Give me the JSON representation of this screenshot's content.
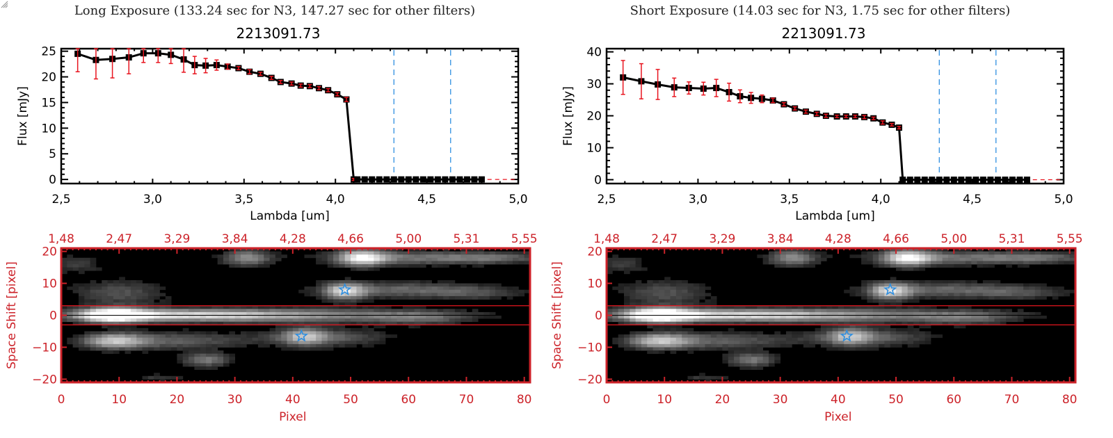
{
  "panels": [
    {
      "id": "long",
      "exposure_title": "Long Exposure (133.24 sec for N3, 147.27 sec for other filters)",
      "object_title": "2213091.73"
    },
    {
      "id": "short",
      "exposure_title": "Short Exposure (14.03 sec for N3, 1.75 sec for other filters)",
      "object_title": "2213091.73"
    }
  ],
  "colors": {
    "spectrum_line": "#000000",
    "error_bar": "#e8141e",
    "filter_line": "#2f8fe0",
    "image_axis": "#cc2229",
    "aperture_line": "#e8141e",
    "star_marker": "#2f8fe0"
  },
  "chart_data": [
    {
      "type": "line",
      "panel": "long",
      "title": "2213091.73",
      "xlabel": "Lambda [um]",
      "ylabel": "Flux [mJy]",
      "xlim": [
        2.5,
        5.0
      ],
      "ylim": [
        -0.8,
        25.5
      ],
      "xticks": [
        "2.5",
        "3.0",
        "3.5",
        "4.0",
        "4.5",
        "5.0"
      ],
      "xtick_values": [
        2.5,
        3.0,
        3.5,
        4.0,
        4.5,
        5.0
      ],
      "yticks": [
        "0",
        "5",
        "10",
        "15",
        "20",
        "25"
      ],
      "ytick_values": [
        0,
        5,
        10,
        15,
        20,
        25
      ],
      "filter_lines_x": [
        4.32,
        4.63
      ],
      "zero_line_y": 0,
      "x": [
        2.59,
        2.69,
        2.78,
        2.87,
        2.95,
        3.03,
        3.1,
        3.17,
        3.23,
        3.29,
        3.35,
        3.41,
        3.47,
        3.53,
        3.59,
        3.65,
        3.7,
        3.76,
        3.81,
        3.86,
        3.91,
        3.96,
        4.01,
        4.06,
        4.1,
        4.12,
        4.16,
        4.2,
        4.24,
        4.28,
        4.32,
        4.36,
        4.4,
        4.44,
        4.48,
        4.52,
        4.56,
        4.6,
        4.64,
        4.68,
        4.72,
        4.76,
        4.8
      ],
      "y": [
        24.5,
        23.3,
        23.5,
        23.8,
        24.6,
        24.6,
        24.3,
        23.4,
        22.3,
        22.2,
        22.3,
        22.0,
        21.7,
        21.0,
        20.6,
        19.8,
        19.0,
        18.7,
        18.3,
        18.2,
        17.8,
        17.4,
        16.6,
        15.6,
        0,
        0,
        0,
        0,
        0,
        0,
        0,
        0,
        0,
        0,
        0,
        0,
        0,
        0,
        0,
        0,
        0,
        0,
        0
      ],
      "yerr": [
        3.5,
        3.7,
        3.7,
        3.2,
        1.8,
        1.8,
        1.7,
        2.5,
        1.7,
        1.4,
        1.0,
        0.5,
        0.3,
        0.4,
        0.3,
        0.3,
        0.3,
        0.3,
        0.3,
        0.3,
        0.3,
        0.3,
        0.3,
        0.4,
        0.2,
        0,
        0,
        0,
        0,
        0,
        0,
        0,
        0,
        0,
        0,
        0,
        0,
        0,
        0,
        0,
        0,
        0,
        0
      ]
    },
    {
      "type": "line",
      "panel": "short",
      "title": "2213091.73",
      "xlabel": "Lambda [um]",
      "ylabel": "Flux [mJy]",
      "xlim": [
        2.5,
        5.0
      ],
      "ylim": [
        -1.2,
        41
      ],
      "xticks": [
        "2.5",
        "3.0",
        "3.5",
        "4.0",
        "4.5",
        "5.0"
      ],
      "xtick_values": [
        2.5,
        3.0,
        3.5,
        4.0,
        4.5,
        5.0
      ],
      "yticks": [
        "0",
        "10",
        "20",
        "30",
        "40"
      ],
      "ytick_values": [
        0,
        10,
        20,
        30,
        40
      ],
      "filter_lines_x": [
        4.32,
        4.63
      ],
      "zero_line_y": 0,
      "x": [
        2.59,
        2.69,
        2.78,
        2.87,
        2.95,
        3.03,
        3.1,
        3.17,
        3.23,
        3.29,
        3.35,
        3.41,
        3.47,
        3.53,
        3.59,
        3.65,
        3.7,
        3.76,
        3.81,
        3.86,
        3.91,
        3.96,
        4.01,
        4.06,
        4.1,
        4.12,
        4.16,
        4.2,
        4.24,
        4.28,
        4.32,
        4.36,
        4.4,
        4.44,
        4.48,
        4.52,
        4.56,
        4.6,
        4.64,
        4.68,
        4.72,
        4.76,
        4.8
      ],
      "y": [
        32.0,
        30.8,
        29.8,
        28.9,
        28.7,
        28.5,
        28.7,
        27.4,
        26.1,
        25.6,
        25.3,
        24.8,
        23.6,
        22.3,
        21.3,
        20.6,
        20.0,
        19.8,
        19.8,
        19.8,
        19.6,
        19.2,
        17.9,
        17.2,
        16.3,
        0,
        0,
        0,
        0,
        0,
        0,
        0,
        0,
        0,
        0,
        0,
        0,
        0,
        0,
        0,
        0,
        0,
        0
      ],
      "yerr": [
        5.3,
        5.5,
        4.7,
        2.9,
        1.9,
        2.0,
        2.7,
        2.8,
        2.0,
        1.7,
        1.2,
        0.7,
        0.5,
        0.5,
        0.5,
        0.5,
        0.5,
        0.4,
        0.4,
        0.4,
        0.5,
        0.4,
        0.5,
        0.4,
        0.4,
        0,
        0,
        0,
        0,
        0,
        0,
        0,
        0,
        0,
        0,
        0,
        0,
        0,
        0,
        0,
        0,
        0,
        0
      ]
    },
    {
      "type": "heatmap",
      "panel": "long",
      "xlabel": "Pixel",
      "ylabel": "Space Shift [pixel]",
      "xlim": [
        0,
        81
      ],
      "ylim": [
        -21,
        21
      ],
      "xticks": [
        "0",
        "10",
        "20",
        "30",
        "40",
        "50",
        "60",
        "70",
        "80"
      ],
      "xtick_values": [
        0,
        10,
        20,
        30,
        40,
        50,
        60,
        70,
        80
      ],
      "top_xticks": [
        "1.48",
        "2.47",
        "3.29",
        "3.84",
        "4.28",
        "4.66",
        "5.00",
        "5.31",
        "5.55"
      ],
      "top_xlabel": "Lambda [um]",
      "yticks": [
        "20",
        "10",
        "0",
        "-10",
        "-20"
      ],
      "ytick_values": [
        20,
        10,
        0,
        -10,
        -20
      ],
      "aperture_y": [
        3,
        -3
      ],
      "center_y": 0,
      "stars": [
        {
          "x": 49,
          "y": 8
        },
        {
          "x": 41.5,
          "y": -6.5
        }
      ]
    },
    {
      "type": "heatmap",
      "panel": "short",
      "xlabel": "Pixel",
      "ylabel": "Space Shift [pixel]",
      "xlim": [
        0,
        81
      ],
      "ylim": [
        -21,
        21
      ],
      "xticks": [
        "0",
        "10",
        "20",
        "30",
        "40",
        "50",
        "60",
        "70",
        "80"
      ],
      "xtick_values": [
        0,
        10,
        20,
        30,
        40,
        50,
        60,
        70,
        80
      ],
      "top_xticks": [
        "1.48",
        "2.47",
        "3.29",
        "3.84",
        "4.28",
        "4.66",
        "5.00",
        "5.31",
        "5.55"
      ],
      "top_xlabel": "Lambda [um]",
      "yticks": [
        "20",
        "10",
        "0",
        "-10",
        "-20"
      ],
      "ytick_values": [
        20,
        10,
        0,
        -10,
        -20
      ],
      "aperture_y": [
        3,
        -3
      ],
      "center_y": 0,
      "stars": [
        {
          "x": 49,
          "y": 8
        },
        {
          "x": 41.5,
          "y": -6.5
        }
      ]
    }
  ]
}
